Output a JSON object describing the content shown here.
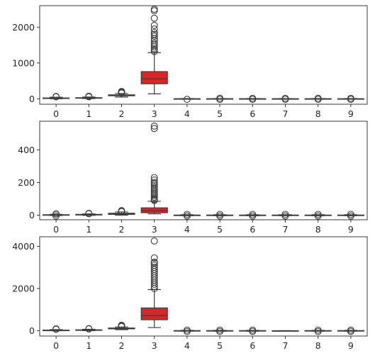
{
  "chart_data": [
    {
      "type": "box",
      "categories": [
        "0",
        "1",
        "2",
        "3",
        "4",
        "5",
        "6",
        "7",
        "8",
        "9"
      ],
      "ylim": [
        -150,
        2600
      ],
      "yticks": [
        0,
        1000,
        2000
      ],
      "xlim": [
        -0.5,
        9.5
      ],
      "box_color": "#d62728",
      "boxes": [
        {
          "q1": 10,
          "median": 17,
          "q3": 25,
          "whislo": 2,
          "whishi": 45,
          "fliers": [
            55,
            65
          ]
        },
        {
          "q1": 18,
          "median": 24,
          "q3": 32,
          "whislo": 8,
          "whishi": 50,
          "fliers": [
            58,
            66,
            74
          ]
        },
        {
          "q1": 85,
          "median": 98,
          "q3": 112,
          "whislo": 50,
          "whishi": 150,
          "fliers": [
            160,
            175,
            190,
            205
          ]
        },
        {
          "q1": 420,
          "median": 560,
          "q3": 760,
          "whislo": 140,
          "whishi": 1290,
          "fliers": [
            1320,
            1360,
            1400,
            1450,
            1500,
            1550,
            1620,
            1680,
            1750,
            1800,
            1850,
            1950,
            2050,
            2250,
            2460,
            2500
          ]
        },
        {
          "q1": -4,
          "median": 0,
          "q3": 4,
          "whislo": -10,
          "whishi": 10,
          "fliers": [
            -14
          ]
        },
        {
          "q1": -5,
          "median": 0,
          "q3": 5,
          "whislo": -10,
          "whishi": 10,
          "fliers": [
            -15,
            16
          ]
        },
        {
          "q1": -4,
          "median": 0,
          "q3": 4,
          "whislo": -9,
          "whishi": 9,
          "fliers": [
            -14,
            15
          ]
        },
        {
          "q1": -4,
          "median": 0,
          "q3": 4,
          "whislo": -9,
          "whishi": 9,
          "fliers": [
            -14,
            15
          ]
        },
        {
          "q1": -4,
          "median": 0,
          "q3": 4,
          "whislo": -9,
          "whishi": 9,
          "fliers": [
            -14,
            16
          ]
        },
        {
          "q1": -4,
          "median": 0,
          "q3": 4,
          "whislo": -9,
          "whishi": 9,
          "fliers": [
            -14,
            15
          ]
        }
      ]
    },
    {
      "type": "box",
      "categories": [
        "0",
        "1",
        "2",
        "3",
        "4",
        "5",
        "6",
        "7",
        "8",
        "9"
      ],
      "ylim": [
        -28,
        575
      ],
      "yticks": [
        0,
        200,
        400
      ],
      "xlim": [
        -0.5,
        9.5
      ],
      "box_color": "#d62728",
      "boxes": [
        {
          "q1": 0,
          "median": 1,
          "q3": 3,
          "whislo": -2,
          "whishi": 5,
          "fliers": [
            -5,
            6,
            8
          ]
        },
        {
          "q1": 1,
          "median": 3,
          "q3": 5,
          "whislo": -1,
          "whishi": 8,
          "fliers": [
            9,
            11
          ]
        },
        {
          "q1": 5,
          "median": 8,
          "q3": 12,
          "whislo": 0,
          "whishi": 20,
          "fliers": [
            22,
            25,
            28
          ]
        },
        {
          "q1": 15,
          "median": 28,
          "q3": 45,
          "whislo": 8,
          "whishi": 85,
          "fliers": [
            90,
            95,
            100,
            110,
            120,
            130,
            140,
            150,
            160,
            170,
            180,
            190,
            200,
            215,
            230,
            530,
            545
          ]
        },
        {
          "q1": -1,
          "median": 0,
          "q3": 1,
          "whislo": -3,
          "whishi": 3,
          "fliers": [
            -5,
            5
          ]
        },
        {
          "q1": -1,
          "median": 0,
          "q3": 1,
          "whislo": -3,
          "whishi": 3,
          "fliers": [
            -5,
            5
          ]
        },
        {
          "q1": -1,
          "median": 0,
          "q3": 1,
          "whislo": -3,
          "whishi": 3,
          "fliers": [
            -5,
            5
          ]
        },
        {
          "q1": -1,
          "median": 0,
          "q3": 1,
          "whislo": -3,
          "whishi": 3,
          "fliers": [
            -5,
            5
          ]
        },
        {
          "q1": -1,
          "median": 0,
          "q3": 1,
          "whislo": -3,
          "whishi": 3,
          "fliers": [
            -5,
            5
          ]
        },
        {
          "q1": -1,
          "median": 0,
          "q3": 1,
          "whislo": -3,
          "whishi": 3,
          "fliers": [
            -5,
            5
          ]
        }
      ]
    },
    {
      "type": "box",
      "categories": [
        "0",
        "1",
        "2",
        "3",
        "4",
        "5",
        "6",
        "7",
        "8",
        "9"
      ],
      "ylim": [
        -250,
        4450
      ],
      "yticks": [
        0,
        2000,
        4000
      ],
      "xlim": [
        -0.5,
        9.5
      ],
      "box_color": "#d62728",
      "boxes": [
        {
          "q1": 10,
          "median": 20,
          "q3": 30,
          "whislo": 0,
          "whishi": 55,
          "fliers": [
            70,
            90
          ]
        },
        {
          "q1": 20,
          "median": 32,
          "q3": 45,
          "whislo": 5,
          "whishi": 70,
          "fliers": [
            85,
            100
          ]
        },
        {
          "q1": 90,
          "median": 110,
          "q3": 130,
          "whislo": 50,
          "whishi": 180,
          "fliers": [
            200,
            230,
            260
          ]
        },
        {
          "q1": 520,
          "median": 720,
          "q3": 1080,
          "whislo": 150,
          "whishi": 1950,
          "fliers": [
            2000,
            2100,
            2200,
            2300,
            2400,
            2500,
            2600,
            2700,
            2800,
            2900,
            3000,
            3100,
            3200,
            3250,
            3450,
            4250
          ]
        },
        {
          "q1": -8,
          "median": 0,
          "q3": 8,
          "whislo": -20,
          "whishi": 20,
          "fliers": [
            -35,
            30
          ]
        },
        {
          "q1": -8,
          "median": 0,
          "q3": 8,
          "whislo": -20,
          "whishi": 20,
          "fliers": [
            -35,
            30
          ]
        },
        {
          "q1": -8,
          "median": 0,
          "q3": 8,
          "whislo": -20,
          "whishi": 20,
          "fliers": [
            -30,
            30
          ]
        },
        {
          "q1": -2,
          "median": 0,
          "q3": 2,
          "whislo": -4,
          "whishi": 4,
          "fliers": []
        },
        {
          "q1": -8,
          "median": 0,
          "q3": 8,
          "whislo": -20,
          "whishi": 20,
          "fliers": [
            -35,
            30
          ]
        },
        {
          "q1": -8,
          "median": 0,
          "q3": 8,
          "whislo": -20,
          "whishi": 20,
          "fliers": [
            -30,
            30
          ]
        }
      ]
    }
  ]
}
